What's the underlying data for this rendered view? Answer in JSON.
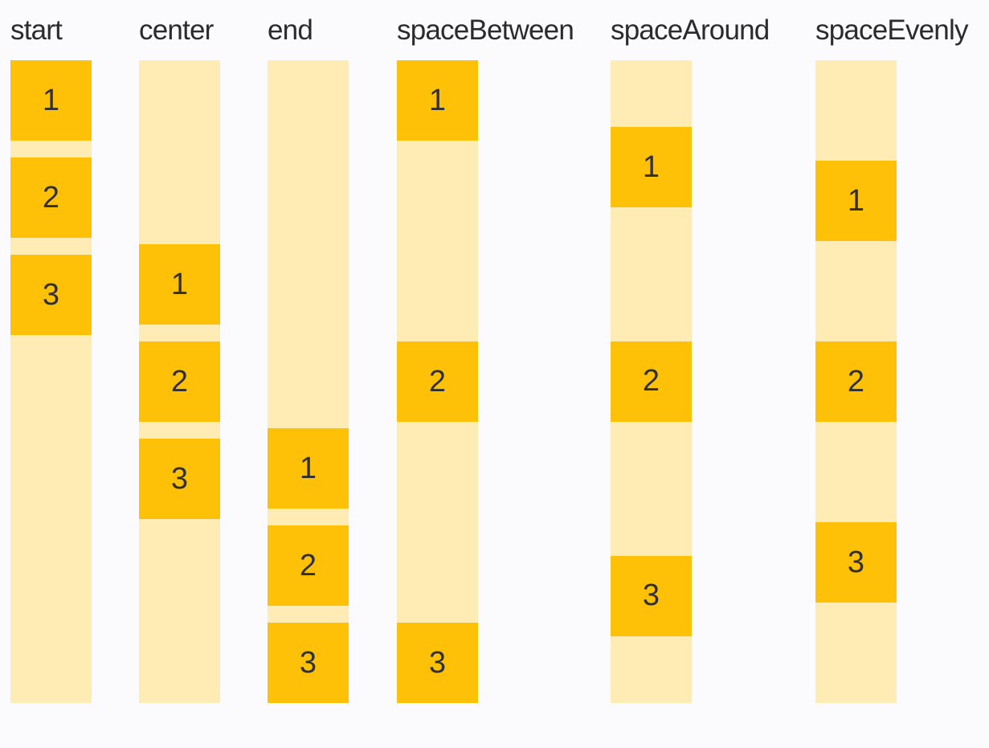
{
  "colors": {
    "page_bg": "#fbfbfe",
    "box": "#ffc107",
    "track": "#ffecb4",
    "label_text": "#2b2b2b",
    "box_text": "#303030"
  },
  "columns": [
    {
      "label": "start",
      "alignment": "start",
      "items": [
        "1",
        "2",
        "3"
      ]
    },
    {
      "label": "center",
      "alignment": "center",
      "items": [
        "1",
        "2",
        "3"
      ]
    },
    {
      "label": "end",
      "alignment": "end",
      "items": [
        "1",
        "2",
        "3"
      ]
    },
    {
      "label": "spaceBetween",
      "alignment": "spaceBetween",
      "items": [
        "1",
        "2",
        "3"
      ]
    },
    {
      "label": "spaceAround",
      "alignment": "spaceAround",
      "items": [
        "1",
        "2",
        "3"
      ]
    },
    {
      "label": "spaceEvenly",
      "alignment": "spaceEvenly",
      "items": [
        "1",
        "2",
        "3"
      ]
    }
  ]
}
